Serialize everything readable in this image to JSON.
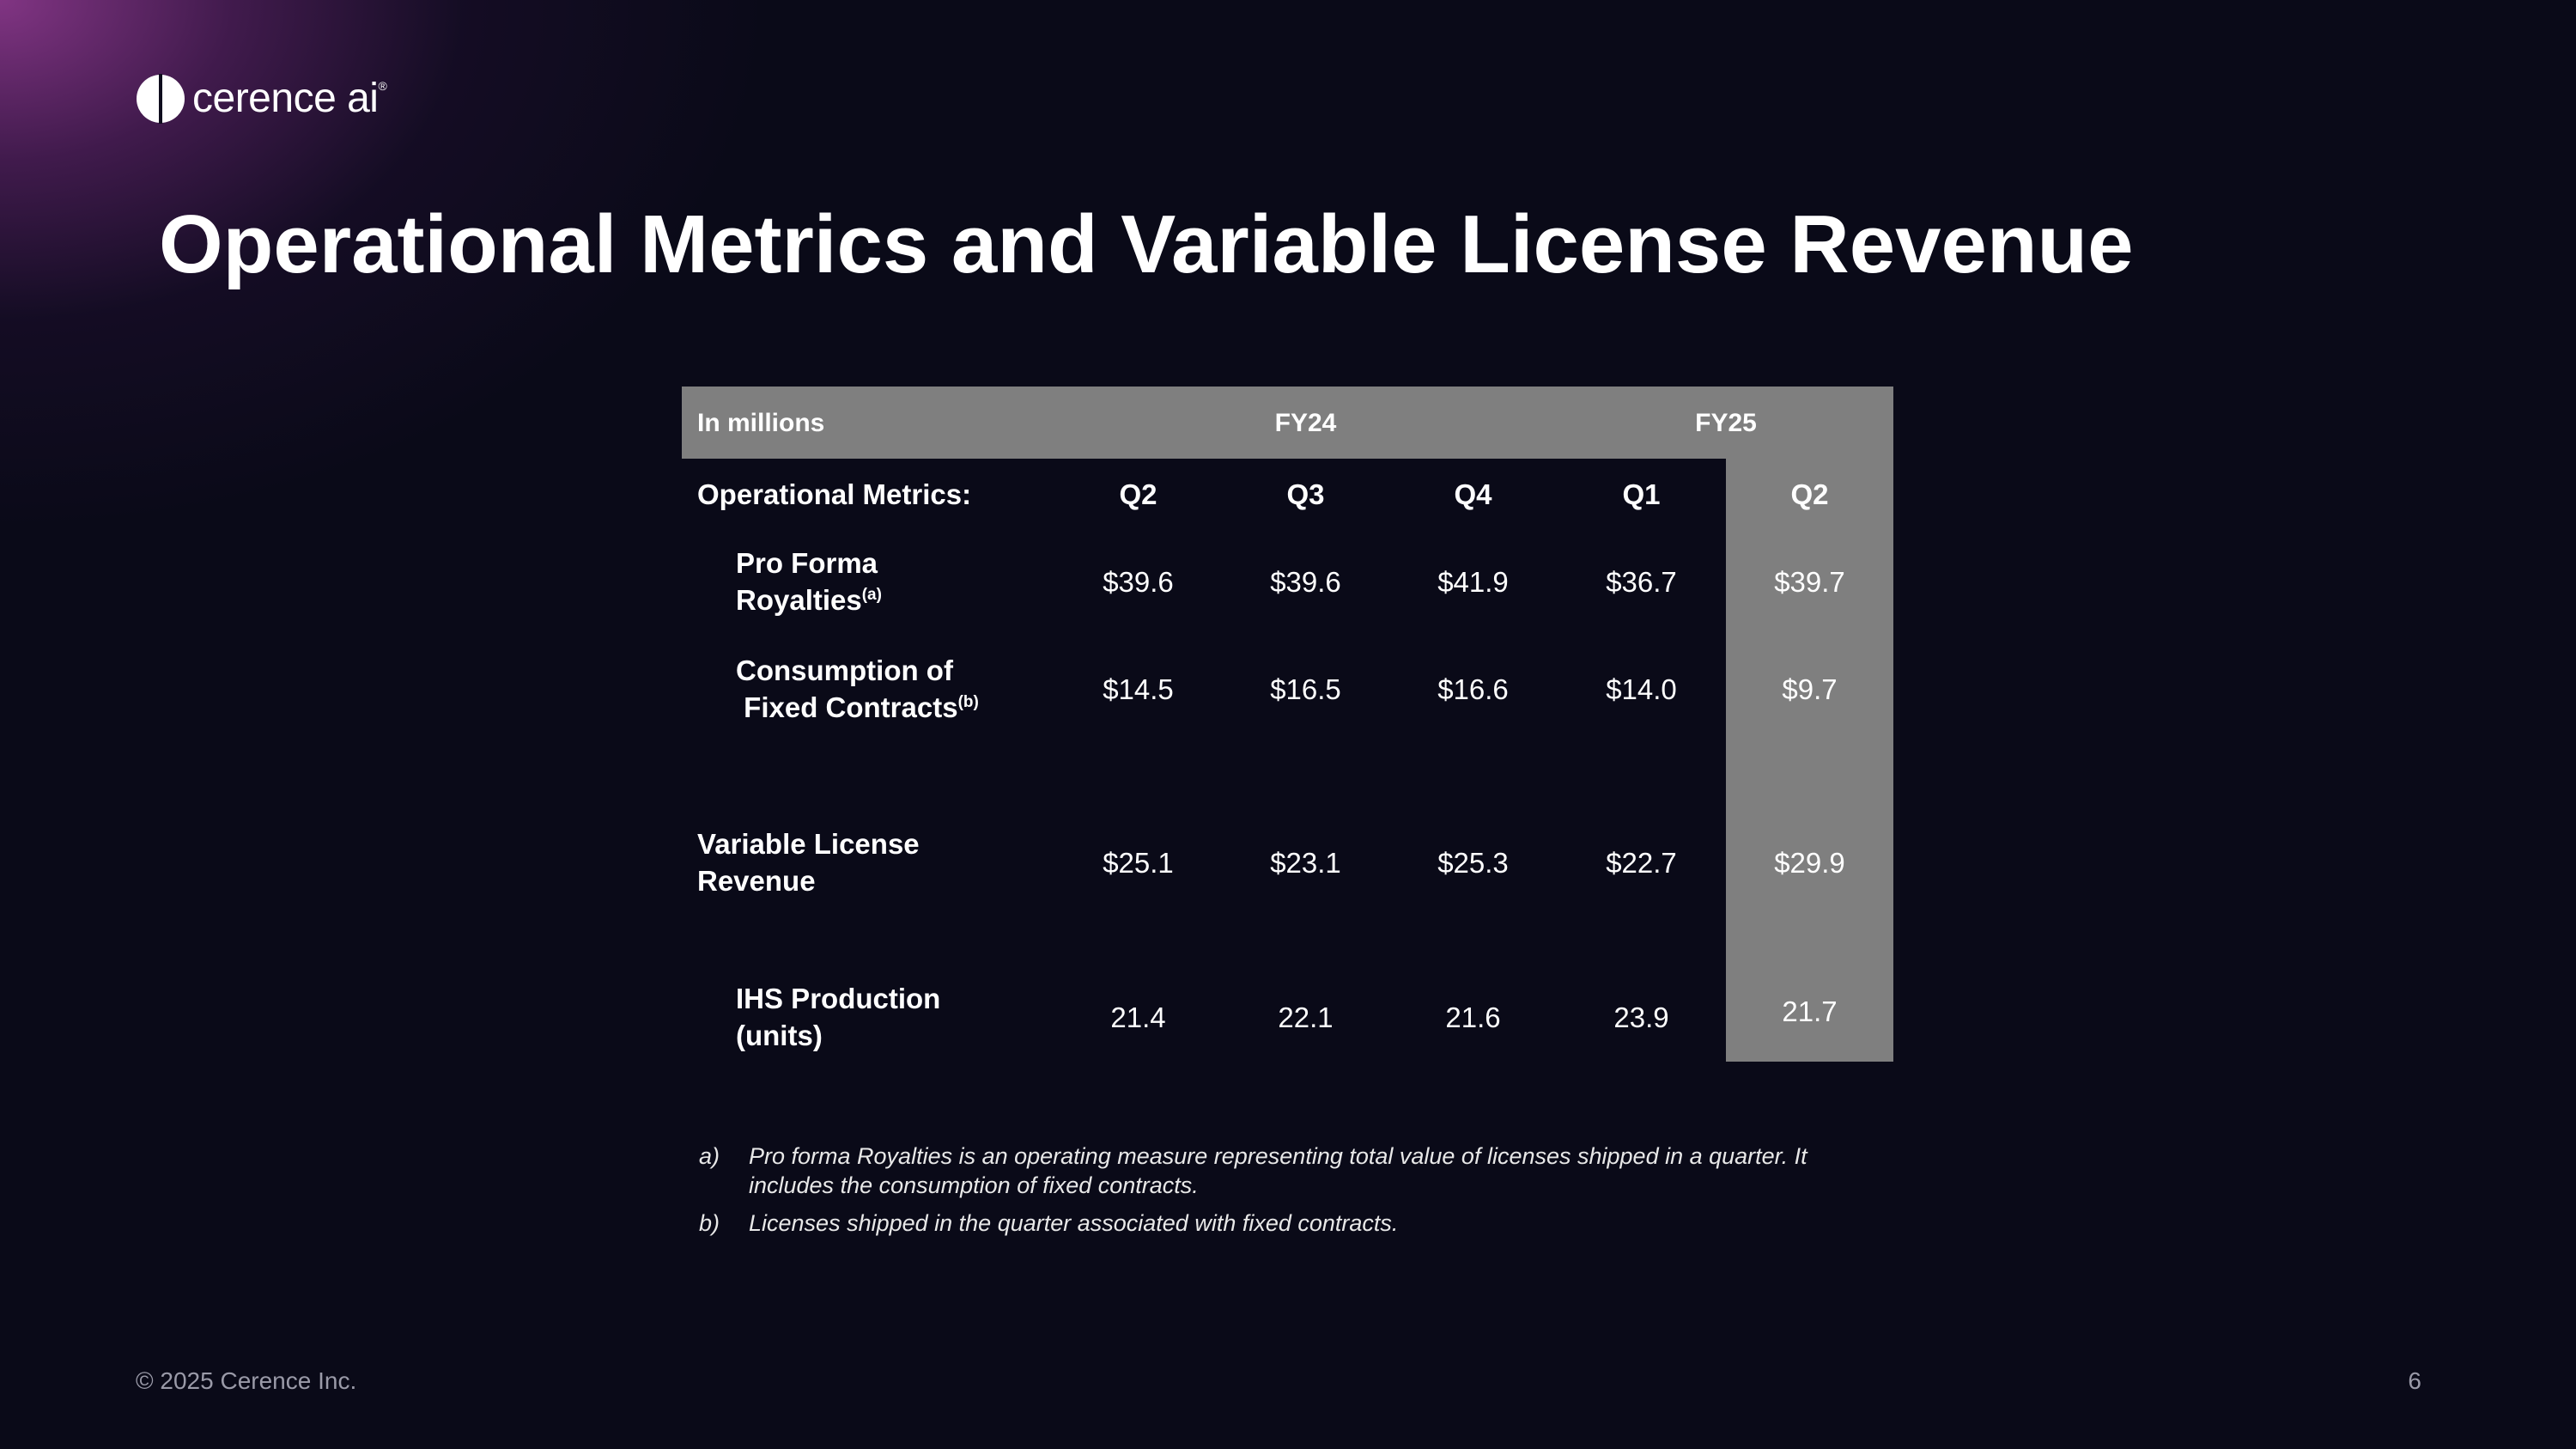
{
  "logo": {
    "text": "cerence ai",
    "trademark": "®"
  },
  "title": "Operational Metrics and Variable License Revenue",
  "table": {
    "units_label": "In millions",
    "fiscal_years": [
      "FY24",
      "FY25"
    ],
    "section_label": "Operational Metrics:",
    "quarters": [
      "Q2",
      "Q3",
      "Q4",
      "Q1",
      "Q2"
    ],
    "rows": [
      {
        "label_line1": "Pro Forma",
        "label_line2": "Royalties",
        "label_sup": "(a)",
        "values": [
          "$39.6",
          "$39.6",
          "$41.9",
          "$36.7",
          "$39.7"
        ]
      },
      {
        "label_line1": "Consumption of",
        "label_line2": "Fixed Contracts",
        "label_sup": "(b)",
        "values": [
          "$14.5",
          "$16.5",
          "$16.6",
          "$14.0",
          "$9.7"
        ]
      },
      {
        "label_line1": "Variable License",
        "label_line2": "Revenue",
        "label_sup": "",
        "values": [
          "$25.1",
          "$23.1",
          "$25.3",
          "$22.7",
          "$29.9"
        ]
      },
      {
        "label_line1": "IHS Production",
        "label_line2": "(units)",
        "label_sup": "",
        "values": [
          "21.4",
          "22.1",
          "21.6",
          "23.9",
          "21.7"
        ]
      }
    ],
    "highlight_color": "#7f7f7f"
  },
  "footnotes": [
    {
      "key": "a)",
      "text": "Pro forma Royalties is an operating measure representing total value of licenses shipped in a quarter. It includes the consumption of fixed contracts."
    },
    {
      "key": "b)",
      "text": "Licenses shipped in the quarter associated with fixed contracts."
    }
  ],
  "footer": {
    "copyright": "© 2025 Cerence Inc.",
    "page_number": "6"
  }
}
